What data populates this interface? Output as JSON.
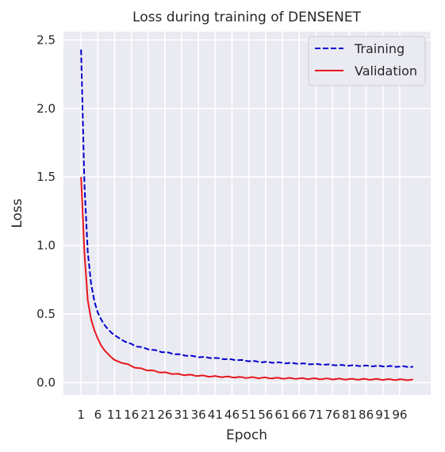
{
  "chart_data": {
    "type": "line",
    "title": "Loss during training of DENSENET",
    "xlabel": "Epoch",
    "ylabel": "Loss",
    "xlim": [
      -4.25,
      105.25
    ],
    "ylim": [
      -0.09,
      2.56
    ],
    "xticks": [
      1,
      6,
      11,
      16,
      21,
      26,
      31,
      36,
      41,
      46,
      51,
      56,
      61,
      66,
      71,
      76,
      81,
      86,
      91,
      96
    ],
    "yticks": [
      0.0,
      0.5,
      1.0,
      1.5,
      2.0,
      2.5
    ],
    "ytick_labels": [
      "0.0",
      "0.5",
      "1.0",
      "1.5",
      "2.0",
      "2.5"
    ],
    "grid": true,
    "legend_position": "top-right",
    "series": [
      {
        "name": "Training",
        "color": "#0000cc",
        "style": "dashed",
        "anchors": [
          [
            1,
            2.43
          ],
          [
            2,
            1.45
          ],
          [
            3,
            0.95
          ],
          [
            4,
            0.72
          ],
          [
            5,
            0.59
          ],
          [
            6,
            0.51
          ],
          [
            7,
            0.46
          ],
          [
            8,
            0.42
          ],
          [
            9,
            0.39
          ],
          [
            10,
            0.365
          ],
          [
            11,
            0.345
          ],
          [
            13,
            0.315
          ],
          [
            15,
            0.29
          ],
          [
            17,
            0.27
          ],
          [
            20,
            0.25
          ],
          [
            25,
            0.225
          ],
          [
            30,
            0.205
          ],
          [
            35,
            0.19
          ],
          [
            40,
            0.18
          ],
          [
            45,
            0.17
          ],
          [
            50,
            0.16
          ],
          [
            55,
            0.15
          ],
          [
            60,
            0.145
          ],
          [
            70,
            0.135
          ],
          [
            80,
            0.125
          ],
          [
            90,
            0.12
          ],
          [
            100,
            0.115
          ]
        ]
      },
      {
        "name": "Validation",
        "color": "#e8161c",
        "style": "solid",
        "anchors": [
          [
            1,
            1.5
          ],
          [
            2,
            0.95
          ],
          [
            3,
            0.6
          ],
          [
            4,
            0.46
          ],
          [
            5,
            0.38
          ],
          [
            6,
            0.32
          ],
          [
            7,
            0.27
          ],
          [
            8,
            0.235
          ],
          [
            9,
            0.21
          ],
          [
            10,
            0.185
          ],
          [
            11,
            0.165
          ],
          [
            12,
            0.155
          ],
          [
            14,
            0.14
          ],
          [
            16,
            0.12
          ],
          [
            18,
            0.105
          ],
          [
            20,
            0.095
          ],
          [
            25,
            0.075
          ],
          [
            30,
            0.06
          ],
          [
            35,
            0.052
          ],
          [
            40,
            0.045
          ],
          [
            50,
            0.037
          ],
          [
            60,
            0.032
          ],
          [
            70,
            0.028
          ],
          [
            80,
            0.025
          ],
          [
            90,
            0.023
          ],
          [
            100,
            0.02
          ]
        ]
      }
    ]
  }
}
